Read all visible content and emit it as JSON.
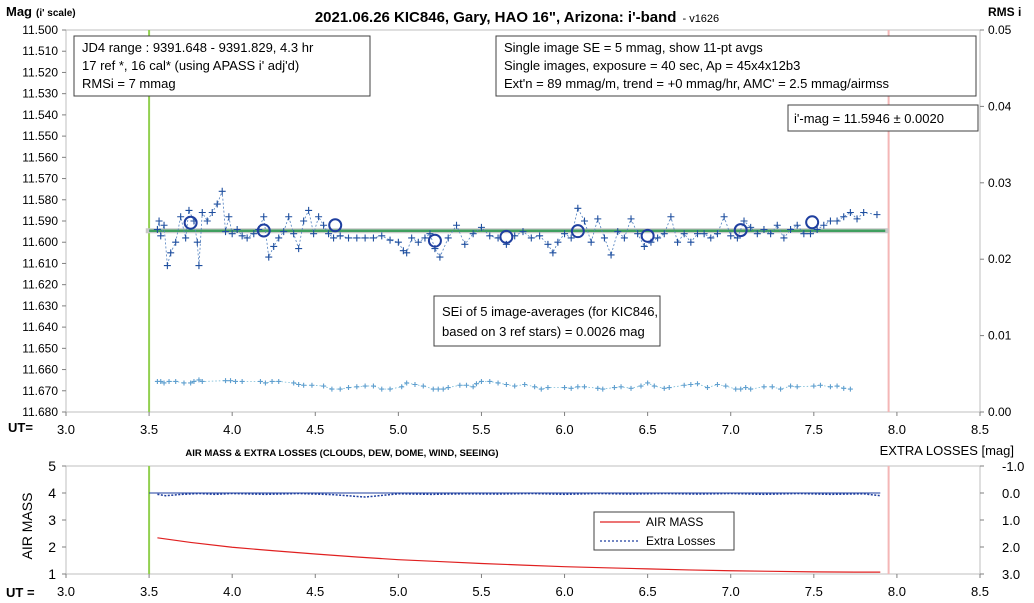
{
  "chart_data": [
    {
      "type": "scatter",
      "title": "2021.06.26 KIC846, Gary, HAO 16\", Arizona: i'-band",
      "version": "- v1626",
      "ylabel_main": "Mag",
      "ylabel_sub": "(i' scale)",
      "y2label": "RMS i",
      "xlabel": "UT=",
      "xlim": [
        3.0,
        8.5
      ],
      "ylim": [
        11.5,
        11.68
      ],
      "ylim_reversed": true,
      "y2lim": [
        0.0,
        0.05
      ],
      "x_ticks": [
        "3.0",
        "3.5",
        "4.0",
        "4.5",
        "5.0",
        "5.5",
        "6.0",
        "6.5",
        "7.0",
        "7.5",
        "8.0",
        "8.5"
      ],
      "y_ticks": [
        "11.500",
        "11.510",
        "11.520",
        "11.530",
        "11.540",
        "11.550",
        "11.560",
        "11.570",
        "11.580",
        "11.590",
        "11.600",
        "11.610",
        "11.620",
        "11.630",
        "11.640",
        "11.650",
        "11.660",
        "11.670",
        "11.680"
      ],
      "y2_ticks": [
        "0.05",
        "0.04",
        "0.03",
        "0.02",
        "0.01",
        "0.00"
      ],
      "vlines": [
        {
          "x": 3.5,
          "color": "#92d050"
        },
        {
          "x": 7.95,
          "color": "#f4b6b6"
        }
      ],
      "model_mag": 11.5946,
      "series": [
        {
          "kind": "single-image",
          "x": [
            3.55,
            3.56,
            3.57,
            3.59,
            3.61,
            3.63,
            3.66,
            3.69,
            3.72,
            3.74,
            3.77,
            3.79,
            3.8,
            3.82,
            3.85,
            3.88,
            3.91,
            3.94,
            3.96,
            3.98,
            4.0,
            4.03,
            4.06,
            4.09,
            4.13,
            4.16,
            4.19,
            4.22,
            4.25,
            4.28,
            4.31,
            4.34,
            4.37,
            4.4,
            4.43,
            4.46,
            4.49,
            4.52,
            4.55,
            4.58,
            4.61,
            4.65,
            4.7,
            4.75,
            4.8,
            4.85,
            4.9,
            4.95,
            5.0,
            5.03,
            5.05,
            5.08,
            5.12,
            5.16,
            5.19,
            5.22,
            5.25,
            5.3,
            5.35,
            5.4,
            5.45,
            5.5,
            5.55,
            5.6,
            5.65,
            5.7,
            5.75,
            5.8,
            5.85,
            5.9,
            5.93,
            5.96,
            6.0,
            6.04,
            6.08,
            6.12,
            6.16,
            6.2,
            6.24,
            6.28,
            6.32,
            6.36,
            6.4,
            6.44,
            6.48,
            6.52,
            6.56,
            6.6,
            6.64,
            6.68,
            6.72,
            6.76,
            6.8,
            6.84,
            6.88,
            6.92,
            6.96,
            7.0,
            7.04,
            7.08,
            7.12,
            7.16,
            7.2,
            7.24,
            7.28,
            7.32,
            7.36,
            7.4,
            7.44,
            7.48,
            7.52,
            7.56,
            7.6,
            7.64,
            7.68,
            7.72,
            7.76,
            7.8,
            7.88
          ],
          "y": [
            11.594,
            11.59,
            11.597,
            11.592,
            11.611,
            11.605,
            11.6,
            11.588,
            11.598,
            11.585,
            11.59,
            11.6,
            11.611,
            11.586,
            11.59,
            11.586,
            11.582,
            11.576,
            11.595,
            11.588,
            11.596,
            11.594,
            11.597,
            11.598,
            11.596,
            11.594,
            11.588,
            11.607,
            11.602,
            11.598,
            11.595,
            11.588,
            11.596,
            11.603,
            11.59,
            11.585,
            11.596,
            11.588,
            11.592,
            11.596,
            11.598,
            11.597,
            11.598,
            11.598,
            11.598,
            11.598,
            11.597,
            11.599,
            11.6,
            11.604,
            11.605,
            11.598,
            11.6,
            11.598,
            11.596,
            11.603,
            11.607,
            11.598,
            11.592,
            11.601,
            11.596,
            11.593,
            11.597,
            11.598,
            11.601,
            11.597,
            11.595,
            11.598,
            11.597,
            11.601,
            11.605,
            11.6,
            11.596,
            11.598,
            11.584,
            11.59,
            11.6,
            11.589,
            11.598,
            11.606,
            11.595,
            11.598,
            11.589,
            11.596,
            11.602,
            11.6,
            11.598,
            11.596,
            11.588,
            11.6,
            11.596,
            11.6,
            11.596,
            11.596,
            11.598,
            11.596,
            11.588,
            11.597,
            11.598,
            11.59,
            11.593,
            11.596,
            11.594,
            11.596,
            11.592,
            11.598,
            11.594,
            11.592,
            11.596,
            11.596,
            11.594,
            11.592,
            11.59,
            11.59,
            11.588,
            11.586,
            11.589,
            11.586,
            11.587
          ]
        },
        {
          "kind": "11-pt-average",
          "x": [
            3.75,
            4.19,
            4.62,
            5.22,
            5.65,
            6.08,
            6.5,
            7.06,
            7.49
          ],
          "y": [
            11.5908,
            11.5945,
            11.592,
            11.5993,
            11.5975,
            11.5948,
            11.597,
            11.5943,
            11.5906
          ]
        },
        {
          "kind": "rms-i",
          "x": [
            3.55,
            3.57,
            3.59,
            3.62,
            3.66,
            3.71,
            3.75,
            3.77,
            3.8,
            3.82,
            3.96,
            3.99,
            4.02,
            4.06,
            4.17,
            4.2,
            4.24,
            4.28,
            4.37,
            4.4,
            4.43,
            4.48,
            4.55,
            4.6,
            4.65,
            4.7,
            4.75,
            4.8,
            4.85,
            4.9,
            4.95,
            5.02,
            5.05,
            5.1,
            5.15,
            5.21,
            5.24,
            5.27,
            5.3,
            5.37,
            5.41,
            5.45,
            5.47,
            5.5,
            5.55,
            5.6,
            5.65,
            5.7,
            5.76,
            5.82,
            5.86,
            5.9,
            6.0,
            6.04,
            6.08,
            6.12,
            6.2,
            6.23,
            6.3,
            6.34,
            6.4,
            6.46,
            6.5,
            6.54,
            6.6,
            6.63,
            6.72,
            6.76,
            6.8,
            6.86,
            6.92,
            6.97,
            7.03,
            7.06,
            7.09,
            7.12,
            7.2,
            7.25,
            7.3,
            7.36,
            7.4,
            7.5,
            7.54,
            7.6,
            7.64,
            7.68,
            7.72
          ],
          "y": [
            0.004,
            0.004,
            0.0038,
            0.004,
            0.004,
            0.0038,
            0.0038,
            0.004,
            0.0042,
            0.004,
            0.0041,
            0.0041,
            0.004,
            0.004,
            0.004,
            0.0038,
            0.004,
            0.004,
            0.0038,
            0.0036,
            0.0035,
            0.0035,
            0.0034,
            0.003,
            0.003,
            0.0032,
            0.0033,
            0.0034,
            0.0034,
            0.003,
            0.003,
            0.0033,
            0.0038,
            0.0036,
            0.0034,
            0.003,
            0.003,
            0.003,
            0.0032,
            0.0035,
            0.0035,
            0.0033,
            0.0037,
            0.004,
            0.004,
            0.0038,
            0.0036,
            0.0034,
            0.0036,
            0.0033,
            0.003,
            0.0032,
            0.0032,
            0.0031,
            0.0033,
            0.0033,
            0.0031,
            0.003,
            0.0032,
            0.0033,
            0.0031,
            0.0034,
            0.0038,
            0.0034,
            0.0031,
            0.0032,
            0.0035,
            0.0036,
            0.0037,
            0.0032,
            0.0036,
            0.0034,
            0.003,
            0.003,
            0.0032,
            0.003,
            0.0033,
            0.0033,
            0.003,
            0.0034,
            0.0033,
            0.0034,
            0.0035,
            0.0033,
            0.0034,
            0.0031,
            0.003
          ]
        }
      ],
      "annotations": {
        "topleft": [
          "JD4 range : 9391.648 - 9391.829, 4.3  hr",
          "17 ref *, 16 cal* (using APASS i' adj'd)",
          "RMSi = 7 mmag"
        ],
        "topright": [
          "Single image SE = 5 mmag, show 11-pt avgs",
          "Single images, exposure = 40 sec, Ap = 45x4x12b3",
          "Ext'n = 89 mmag/m, trend = +0 mmag/hr, AMC' = 2.5 mmag/airmss"
        ],
        "result": "i'-mag = 11.5946 ± 0.0020",
        "sei": [
          "SEi of 5 image-averages (for KIC846,",
          "based on 3 ref stars) = 0.0026 mag"
        ]
      }
    },
    {
      "type": "line",
      "title": "AIR MASS & EXTRA LOSSES (CLOUDS, DEW, DOME, WIND, SEEING)",
      "ylabel": "AIR MASS",
      "y2label": "EXTRA LOSSES [mag]",
      "xlabel": "UT =",
      "xlim": [
        3.0,
        8.5
      ],
      "ylim": [
        1,
        5
      ],
      "y2lim": [
        -1.0,
        3.0
      ],
      "y2_reversed": true,
      "x_ticks": [
        "3.0",
        "3.5",
        "4.0",
        "4.5",
        "5.0",
        "5.5",
        "6.0",
        "6.5",
        "7.0",
        "7.5",
        "8.0",
        "8.5"
      ],
      "y_ticks": [
        "5",
        "4",
        "3",
        "2",
        "1"
      ],
      "y2_ticks": [
        "-1.0",
        "0.0",
        "1.0",
        "2.0",
        "3.0"
      ],
      "series": [
        {
          "name": "AIR MASS",
          "color": "#e02020",
          "x": [
            3.55,
            3.75,
            4.0,
            4.25,
            4.5,
            4.75,
            5.0,
            5.25,
            5.5,
            5.75,
            6.0,
            6.25,
            6.5,
            6.75,
            7.0,
            7.25,
            7.5,
            7.75,
            7.9
          ],
          "y": [
            2.34,
            2.17,
            1.99,
            1.86,
            1.74,
            1.63,
            1.53,
            1.46,
            1.39,
            1.33,
            1.27,
            1.23,
            1.19,
            1.15,
            1.12,
            1.1,
            1.08,
            1.07,
            1.07
          ]
        },
        {
          "name": "Extra Losses",
          "color": "#1f3f9f",
          "x": [
            3.55,
            3.6,
            3.7,
            3.8,
            3.9,
            4.0,
            4.2,
            4.4,
            4.6,
            4.8,
            5.0,
            5.2,
            5.4,
            5.6,
            5.8,
            6.0,
            6.2,
            6.4,
            6.6,
            6.8,
            7.0,
            7.2,
            7.4,
            7.6,
            7.8,
            7.9
          ],
          "y": [
            0.05,
            0.1,
            0.05,
            0.02,
            0.05,
            0.02,
            0.05,
            0.02,
            0.06,
            0.15,
            0.03,
            0.05,
            0.03,
            0.04,
            0.02,
            0.05,
            0.02,
            0.04,
            0.02,
            0.04,
            0.02,
            0.05,
            0.02,
            0.05,
            0.03,
            0.1
          ]
        }
      ]
    }
  ]
}
